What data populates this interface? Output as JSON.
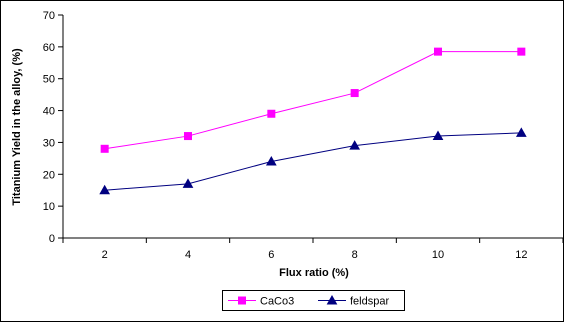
{
  "chart_data": {
    "type": "line",
    "title": "",
    "xlabel": "Flux ratio (%)",
    "ylabel": "Titanium Yield in the alloy, (%)",
    "x": [
      2,
      4,
      6,
      8,
      10,
      12
    ],
    "x_tick_labels": [
      "2",
      "4",
      "6",
      "8",
      "10",
      "12"
    ],
    "ylim": [
      0,
      70
    ],
    "y_ticks": [
      0,
      10,
      20,
      30,
      40,
      50,
      60,
      70
    ],
    "grid": false,
    "legend_position": "bottom",
    "series": [
      {
        "name": "CaCo3",
        "values": [
          28,
          32,
          39,
          45.5,
          58.5,
          58.5
        ],
        "color": "#ff00ff",
        "marker": "square"
      },
      {
        "name": "feldspar",
        "values": [
          15,
          17,
          24,
          29,
          32,
          33
        ],
        "color": "#000080",
        "marker": "triangle"
      }
    ]
  }
}
